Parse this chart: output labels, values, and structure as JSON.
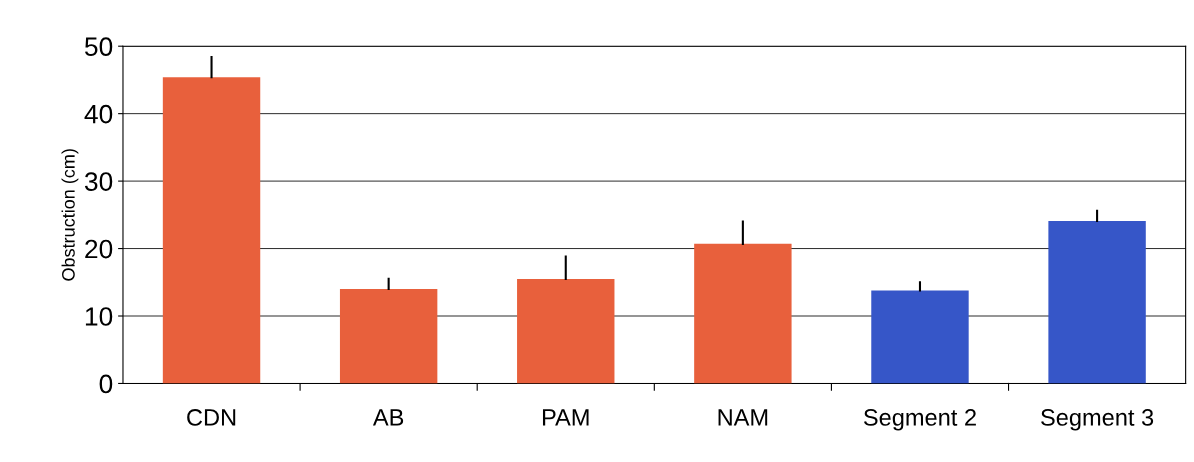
{
  "chart_data": {
    "type": "bar",
    "ylabel": "Obstruction (cm)",
    "categories": [
      "CDN",
      "AB",
      "PAM",
      "NAM",
      "Segment 2",
      "Segment 3"
    ],
    "values": [
      45.4,
      14.0,
      15.5,
      20.7,
      13.8,
      24.1
    ],
    "errors": [
      [
        45.4,
        48.4
      ],
      [
        14.0,
        15.5
      ],
      [
        15.5,
        18.8
      ],
      [
        20.7,
        24.0
      ],
      [
        13.8,
        15.0
      ],
      [
        24.1,
        25.6
      ]
    ],
    "colors": [
      "#e8603c",
      "#e8603c",
      "#e8603c",
      "#e8603c",
      "#3656c8",
      "#3656c8"
    ],
    "ylim": [
      0,
      50
    ],
    "yticks": [
      0,
      10,
      20,
      30,
      40,
      50
    ],
    "grid": "y",
    "legend": false
  }
}
